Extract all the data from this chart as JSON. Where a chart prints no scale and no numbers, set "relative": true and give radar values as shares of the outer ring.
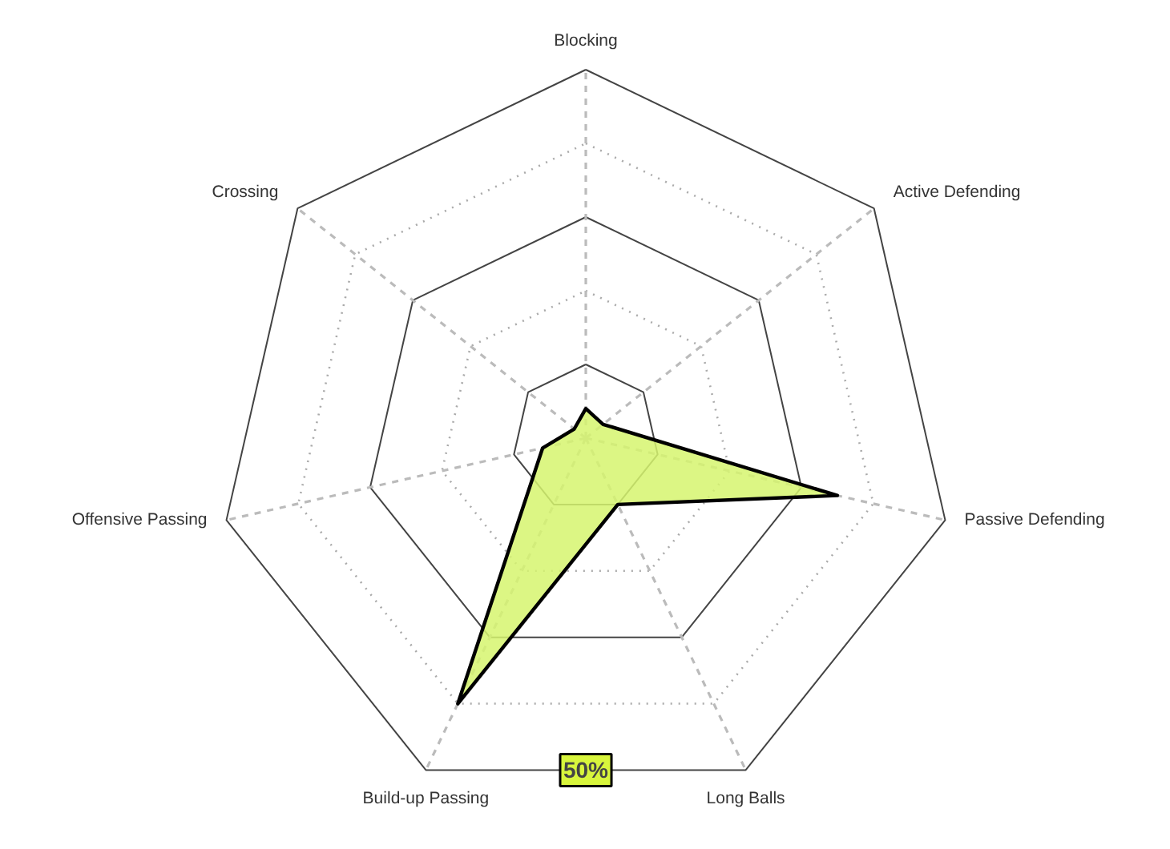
{
  "chart_data": {
    "type": "radar",
    "relative": true,
    "grid": true,
    "categories": [
      "Blocking",
      "Active Defending",
      "Passive Defending",
      "Long Balls",
      "Build-up Passing",
      "Offensive Passing",
      "Crossing"
    ],
    "series": [
      {
        "color": "#d6f56e",
        "values": [
          0.08,
          0.06,
          0.7,
          0.2,
          0.8,
          0.12,
          0.04
        ]
      }
    ],
    "annotations": [
      "50%"
    ]
  }
}
